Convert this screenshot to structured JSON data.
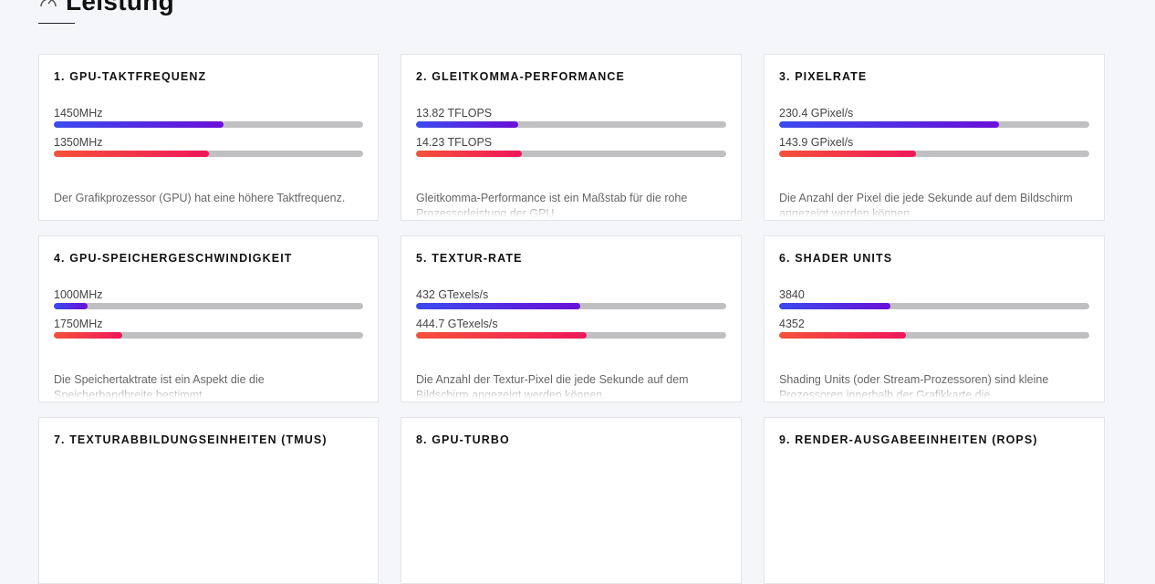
{
  "section": {
    "title": "Leistung",
    "icon": "speedometer-icon"
  },
  "colors": {
    "bar_primary": "#4a3de8",
    "bar_secondary": "#f23a4a",
    "track": "#c0c0c2"
  },
  "cards": [
    {
      "title": "1. GPU-TAKTFREQUENZ",
      "bars": [
        {
          "value": "1450MHz",
          "fill": 0.55
        },
        {
          "value": "1350MHz",
          "fill": 0.5
        }
      ],
      "desc": "Der Grafikprozessor (GPU) hat eine höhere Taktfrequenz."
    },
    {
      "title": "2. GLEITKOMMA-PERFORMANCE",
      "bars": [
        {
          "value": "13.82 TFLOPS",
          "fill": 0.33
        },
        {
          "value": "14.23 TFLOPS",
          "fill": 0.34
        }
      ],
      "desc": "Gleitkomma-Performance ist ein Maßstab für die rohe Prozessorleistung der GPU."
    },
    {
      "title": "3. PIXELRATE",
      "bars": [
        {
          "value": "230.4 GPixel/s",
          "fill": 0.71
        },
        {
          "value": "143.9 GPixel/s",
          "fill": 0.44
        }
      ],
      "desc": "Die Anzahl der Pixel die jede Sekunde auf dem Bildschirm angezeigt werden können."
    },
    {
      "title": "4. GPU-SPEICHERGESCHWINDIGKEIT",
      "bars": [
        {
          "value": "1000MHz",
          "fill": 0.11
        },
        {
          "value": "1750MHz",
          "fill": 0.22
        }
      ],
      "desc": "Die Speichertaktrate ist ein Aspekt die die Speicherbandbreite bestimmt."
    },
    {
      "title": "5. TEXTUR-RATE",
      "bars": [
        {
          "value": "432 GTexels/s",
          "fill": 0.53
        },
        {
          "value": "444.7 GTexels/s",
          "fill": 0.55
        }
      ],
      "desc": "Die Anzahl der Textur-Pixel die jede Sekunde auf dem Bildschirm angezeigt werden können."
    },
    {
      "title": "6. SHADER UNITS",
      "bars": [
        {
          "value": "3840",
          "fill": 0.36
        },
        {
          "value": "4352",
          "fill": 0.41
        }
      ],
      "desc": "Shading Units (oder Stream-Prozessoren) sind kleine Prozessoren innerhalb der Grafikkarte die"
    },
    {
      "title": "7. TEXTURABBILDUNGSEINHEITEN (TMUS)",
      "bars": [],
      "desc": ""
    },
    {
      "title": "8. GPU-TURBO",
      "bars": [],
      "desc": ""
    },
    {
      "title": "9. RENDER-AUSGABEEINHEITEN (ROPS)",
      "bars": [],
      "desc": ""
    }
  ]
}
